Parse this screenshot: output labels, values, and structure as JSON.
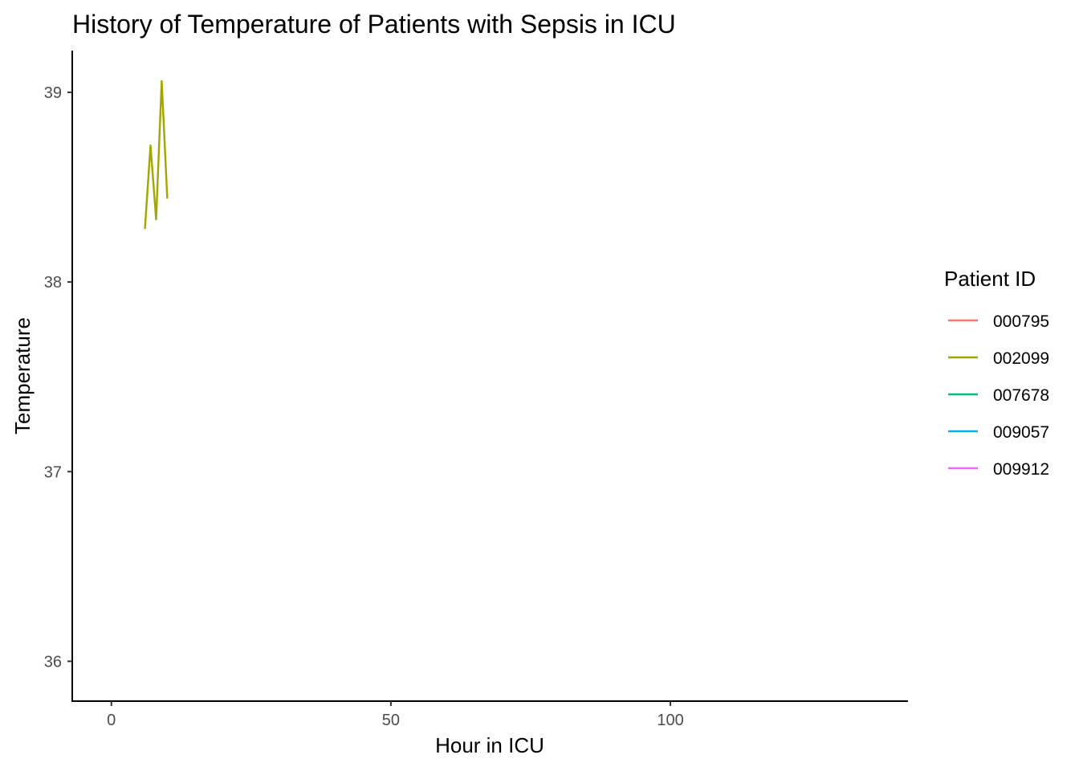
{
  "chart_data": {
    "type": "line",
    "title": "History of Temperature of Patients with Sepsis in ICU",
    "xlabel": "Hour in ICU",
    "ylabel": "Temperature",
    "xlim": [
      -7,
      142.5
    ],
    "ylim": [
      35.79,
      39.22
    ],
    "xticks": [
      0,
      50,
      100
    ],
    "yticks": [
      36,
      37,
      38,
      39
    ],
    "grid": false,
    "legend": {
      "title": "Patient ID",
      "placement": "right"
    },
    "series": [
      {
        "name": "000795",
        "color": "#F8766D",
        "points": []
      },
      {
        "name": "002099",
        "color": "#A3A500",
        "points": [
          [
            6,
            38.28
          ],
          [
            7,
            38.72
          ],
          [
            8,
            38.33
          ],
          [
            9,
            39.06
          ],
          [
            10,
            38.44
          ]
        ]
      },
      {
        "name": "007678",
        "color": "#00BF7D",
        "points": []
      },
      {
        "name": "009057",
        "color": "#00B0F6",
        "points": []
      },
      {
        "name": "009912",
        "color": "#E76BF3",
        "points": []
      }
    ]
  }
}
